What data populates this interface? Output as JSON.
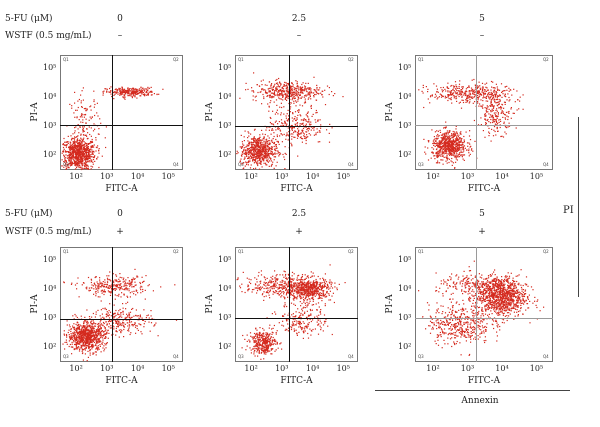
{
  "row_labels": {
    "top": {
      "drug": "5-FU (μM)",
      "extract": "WSTF (0.5 mg/mL)"
    },
    "bottom": {
      "drug": "5-FU (μM)",
      "extract": "WSTF (0.5 mg/mL)"
    }
  },
  "columns": [
    "0",
    "2.5",
    "5"
  ],
  "top_signs": [
    "–",
    "–",
    "–"
  ],
  "bottom_signs": [
    "+",
    "+",
    "+"
  ],
  "axis": {
    "xlabel": "FITC-A",
    "ylabel": "PI-A",
    "xticks": [
      "10²",
      "10³",
      "10⁴",
      "10⁵"
    ],
    "yticks": [
      "10²",
      "10³",
      "10⁴",
      "10⁵"
    ]
  },
  "quadrants": [
    "Q1",
    "Q2",
    "Q3",
    "Q4"
  ],
  "side_label": "PI",
  "bottom_label": "Annexin",
  "colors": {
    "dots": "#d42a1e",
    "gate": "#111111",
    "gate_light": "#9a9a9a"
  },
  "chart_data": [
    {
      "type": "scatter",
      "xlabel": "FITC-A",
      "ylabel": "PI-A",
      "xscale": "log",
      "yscale": "log",
      "xlim": [
        31.6,
        316227
      ],
      "ylim": [
        31.6,
        316227
      ],
      "drug": "0",
      "wstf": "–",
      "gate": {
        "x": 1500,
        "y": 1200
      },
      "clusters": [
        {
          "x": 120,
          "y": 120,
          "n": 800,
          "sx": 0.28,
          "sy": 0.28
        },
        {
          "x": 6000,
          "y": 17000,
          "n": 260,
          "sx": 0.4,
          "sy": 0.08
        },
        {
          "x": 200,
          "y": 1500,
          "n": 120,
          "sx": 0.25,
          "sy": 0.5
        }
      ]
    },
    {
      "type": "scatter",
      "xlabel": "FITC-A",
      "ylabel": "PI-A",
      "xscale": "log",
      "yscale": "log",
      "xlim": [
        31.6,
        316227
      ],
      "ylim": [
        31.6,
        316227
      ],
      "drug": "2.5",
      "wstf": "–",
      "gate": {
        "x": 1800,
        "y": 1100
      },
      "clusters": [
        {
          "x": 180,
          "y": 150,
          "n": 650,
          "sx": 0.3,
          "sy": 0.28
        },
        {
          "x": 1500,
          "y": 18000,
          "n": 420,
          "sx": 0.55,
          "sy": 0.18
        },
        {
          "x": 3000,
          "y": 1200,
          "n": 280,
          "sx": 0.45,
          "sy": 0.35
        }
      ]
    },
    {
      "type": "scatter",
      "xlabel": "FITC-A",
      "ylabel": "PI-A",
      "xscale": "log",
      "yscale": "log",
      "xlim": [
        31.6,
        316227
      ],
      "ylim": [
        31.6,
        316227
      ],
      "drug": "5",
      "wstf": "–",
      "gate": {
        "x": 1900,
        "y": 1150
      },
      "clusters": [
        {
          "x": 300,
          "y": 230,
          "n": 650,
          "sx": 0.25,
          "sy": 0.25
        },
        {
          "x": 1200,
          "y": 15000,
          "n": 380,
          "sx": 0.6,
          "sy": 0.18
        },
        {
          "x": 7000,
          "y": 3000,
          "n": 220,
          "sx": 0.25,
          "sy": 0.35
        }
      ]
    },
    {
      "type": "scatter",
      "xlabel": "FITC-A",
      "ylabel": "PI-A",
      "xscale": "log",
      "yscale": "log",
      "xlim": [
        31.6,
        316227
      ],
      "ylim": [
        31.6,
        316227
      ],
      "drug": "0",
      "wstf": "+",
      "gate": {
        "x": 1600,
        "y": 1000
      },
      "clusters": [
        {
          "x": 220,
          "y": 260,
          "n": 800,
          "sx": 0.3,
          "sy": 0.25
        },
        {
          "x": 1800,
          "y": 14000,
          "n": 280,
          "sx": 0.55,
          "sy": 0.18
        },
        {
          "x": 3000,
          "y": 900,
          "n": 260,
          "sx": 0.5,
          "sy": 0.25
        }
      ]
    },
    {
      "type": "scatter",
      "xlabel": "FITC-A",
      "ylabel": "PI-A",
      "xscale": "log",
      "yscale": "log",
      "xlim": [
        31.6,
        316227
      ],
      "ylim": [
        31.6,
        316227
      ],
      "drug": "2.5",
      "wstf": "+",
      "gate": {
        "x": 1800,
        "y": 1100
      },
      "clusters": [
        {
          "x": 250,
          "y": 160,
          "n": 350,
          "sx": 0.22,
          "sy": 0.2
        },
        {
          "x": 8000,
          "y": 11000,
          "n": 520,
          "sx": 0.35,
          "sy": 0.2
        },
        {
          "x": 800,
          "y": 15000,
          "n": 320,
          "sx": 0.55,
          "sy": 0.2
        },
        {
          "x": 5000,
          "y": 1000,
          "n": 200,
          "sx": 0.4,
          "sy": 0.3
        }
      ]
    },
    {
      "type": "scatter",
      "xlabel": "FITC-A",
      "ylabel": "PI-A",
      "xscale": "log",
      "yscale": "log",
      "xlim": [
        31.6,
        316227
      ],
      "ylim": [
        31.6,
        316227
      ],
      "drug": "5",
      "wstf": "+",
      "gate": {
        "x": 1800,
        "y": 1100
      },
      "clusters": [
        {
          "x": 9000,
          "y": 6000,
          "n": 1000,
          "sx": 0.38,
          "sy": 0.35
        },
        {
          "x": 600,
          "y": 700,
          "n": 420,
          "sx": 0.45,
          "sy": 0.35
        },
        {
          "x": 2000,
          "y": 15000,
          "n": 220,
          "sx": 0.6,
          "sy": 0.2
        }
      ]
    }
  ]
}
